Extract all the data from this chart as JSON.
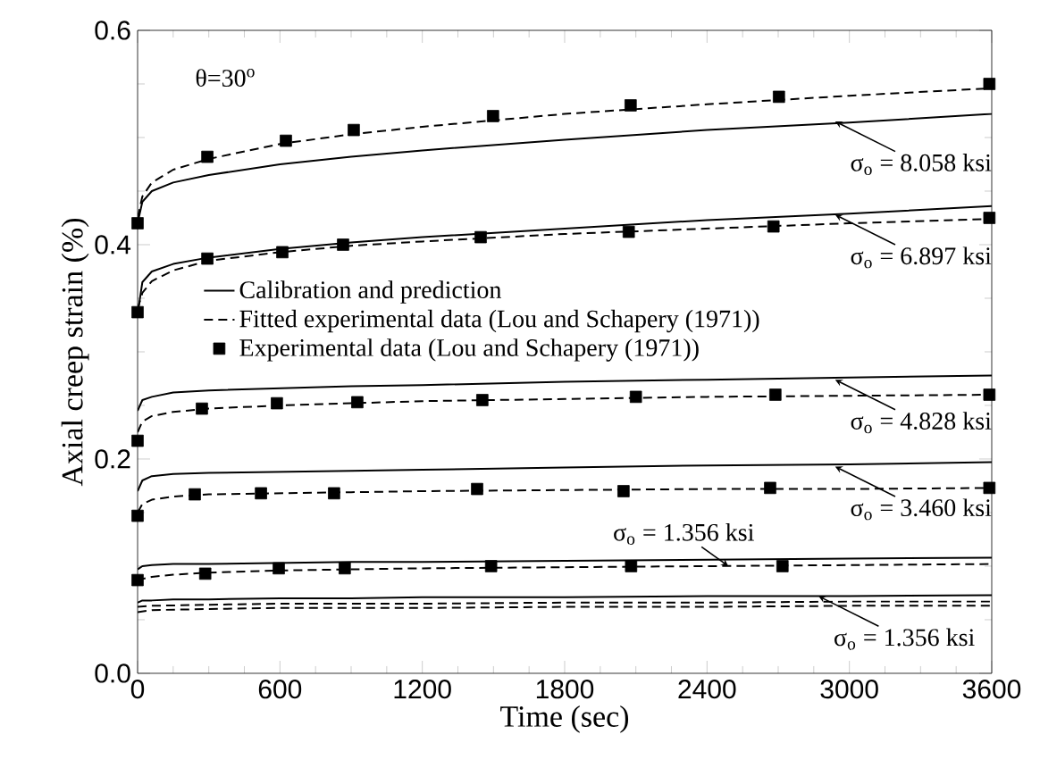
{
  "chart_data": {
    "type": "line",
    "xlabel": "Time (sec)",
    "ylabel": "Axial creep strain (%)",
    "xlim": [
      0,
      3600
    ],
    "xticks": [
      0,
      600,
      1200,
      1800,
      2400,
      3000,
      3600
    ],
    "ylim": [
      0,
      0.6
    ],
    "yticks": [
      {
        "value": 0,
        "label": "0.0"
      },
      {
        "value": 0.2,
        "label": "0.2"
      },
      {
        "value": 0.4,
        "label": "0.4"
      },
      {
        "value": 0.6,
        "label": "0.6"
      }
    ],
    "grid": false,
    "legend": "left",
    "series": [
      {
        "name": "Calibration and prediction",
        "type": "line",
        "line_style": "solid",
        "color": "#000000",
        "x": [
          0,
          20,
          60,
          150,
          300,
          600,
          900,
          1200,
          1800,
          2400,
          3000,
          3600
        ],
        "values": [
          0.42,
          0.44,
          0.45,
          0.458,
          0.465,
          0.475,
          0.482,
          0.488,
          0.498,
          0.507,
          0.514,
          0.522
        ]
      },
      {
        "name": "Fitted experimental data (Lou and Schapery (1971))",
        "type": "line",
        "line_style": "dashed",
        "color": "#000000",
        "x": [
          0,
          20,
          60,
          150,
          300,
          600,
          900,
          1200,
          1800,
          2400,
          3000,
          3600
        ],
        "values": [
          0.425,
          0.445,
          0.458,
          0.47,
          0.48,
          0.494,
          0.503,
          0.51,
          0.522,
          0.531,
          0.539,
          0.546
        ]
      },
      {
        "name": "Experimental data (Lou and Schapery (1971))",
        "type": "scatter",
        "marker": "square",
        "color": "#000000",
        "x": [
          0,
          294,
          625,
          911,
          1498,
          2078,
          2703,
          3590
        ],
        "values": [
          0.42,
          0.482,
          0.497,
          0.507,
          0.52,
          0.53,
          0.538,
          0.55
        ]
      },
      {
        "type": "line",
        "line_style": "solid",
        "color": "#000000",
        "x": [
          0,
          20,
          60,
          150,
          300,
          600,
          900,
          1200,
          1800,
          2400,
          3000,
          3600
        ],
        "values": [
          0.335,
          0.365,
          0.375,
          0.382,
          0.388,
          0.396,
          0.402,
          0.407,
          0.415,
          0.423,
          0.429,
          0.436
        ]
      },
      {
        "type": "line",
        "line_style": "dashed",
        "color": "#000000",
        "x": [
          0,
          20,
          60,
          150,
          300,
          600,
          900,
          1200,
          1800,
          2400,
          3000,
          3600
        ],
        "values": [
          0.34,
          0.355,
          0.366,
          0.376,
          0.385,
          0.393,
          0.399,
          0.403,
          0.41,
          0.415,
          0.42,
          0.424
        ]
      },
      {
        "type": "scatter",
        "marker": "square",
        "color": "#000000",
        "x": [
          0,
          294,
          610,
          866,
          1446,
          2070,
          2680,
          3590
        ],
        "values": [
          0.337,
          0.387,
          0.393,
          0.4,
          0.407,
          0.412,
          0.417,
          0.425
        ]
      },
      {
        "type": "line",
        "line_style": "solid",
        "color": "#000000",
        "x": [
          0,
          20,
          60,
          150,
          300,
          600,
          900,
          1200,
          1800,
          2400,
          3000,
          3600
        ],
        "values": [
          0.245,
          0.255,
          0.258,
          0.262,
          0.264,
          0.266,
          0.268,
          0.269,
          0.272,
          0.274,
          0.276,
          0.278
        ]
      },
      {
        "type": "line",
        "line_style": "dashed",
        "color": "#000000",
        "x": [
          0,
          20,
          60,
          150,
          300,
          600,
          900,
          1200,
          1800,
          2400,
          3000,
          3600
        ],
        "values": [
          0.225,
          0.235,
          0.24,
          0.244,
          0.247,
          0.25,
          0.252,
          0.254,
          0.256,
          0.258,
          0.259,
          0.26
        ]
      },
      {
        "type": "scatter",
        "marker": "square",
        "color": "#000000",
        "x": [
          0,
          271,
          587,
          926,
          1453,
          2100,
          2688,
          3590
        ],
        "values": [
          0.217,
          0.247,
          0.252,
          0.253,
          0.255,
          0.258,
          0.26,
          0.26
        ]
      },
      {
        "type": "line",
        "line_style": "solid",
        "color": "#000000",
        "x": [
          0,
          20,
          60,
          150,
          300,
          600,
          900,
          1200,
          1800,
          2400,
          3000,
          3600
        ],
        "values": [
          0.17,
          0.18,
          0.184,
          0.186,
          0.187,
          0.188,
          0.189,
          0.19,
          0.192,
          0.194,
          0.195,
          0.197
        ]
      },
      {
        "type": "line",
        "line_style": "dashed",
        "color": "#000000",
        "x": [
          0,
          20,
          60,
          150,
          300,
          600,
          900,
          1200,
          1800,
          2400,
          3000,
          3600
        ],
        "values": [
          0.15,
          0.158,
          0.162,
          0.165,
          0.167,
          0.168,
          0.169,
          0.17,
          0.171,
          0.172,
          0.172,
          0.173
        ]
      },
      {
        "type": "scatter",
        "marker": "square",
        "color": "#000000",
        "x": [
          0,
          241,
          520,
          828,
          1431,
          2048,
          2666,
          3590
        ],
        "values": [
          0.147,
          0.167,
          0.168,
          0.168,
          0.172,
          0.17,
          0.173,
          0.173
        ]
      },
      {
        "type": "line",
        "line_style": "solid",
        "color": "#000000",
        "x": [
          0,
          20,
          60,
          150,
          300,
          600,
          900,
          1200,
          1800,
          2400,
          3000,
          3600
        ],
        "values": [
          0.097,
          0.1,
          0.101,
          0.102,
          0.102,
          0.103,
          0.104,
          0.104,
          0.105,
          0.106,
          0.107,
          0.108
        ]
      },
      {
        "type": "line",
        "line_style": "dashed",
        "color": "#000000",
        "x": [
          0,
          20,
          60,
          150,
          300,
          600,
          900,
          1200,
          1800,
          2400,
          3000,
          3600
        ],
        "values": [
          0.085,
          0.088,
          0.09,
          0.092,
          0.094,
          0.096,
          0.097,
          0.098,
          0.099,
          0.1,
          0.101,
          0.102
        ]
      },
      {
        "type": "scatter",
        "marker": "square",
        "color": "#000000",
        "x": [
          0,
          285,
          595,
          873,
          1490,
          2080,
          2718
        ],
        "values": [
          0.087,
          0.093,
          0.098,
          0.098,
          0.1,
          0.1,
          0.1
        ]
      },
      {
        "type": "line",
        "line_style": "solid",
        "color": "#000000",
        "x": [
          0,
          20,
          60,
          150,
          300,
          600,
          900,
          1200,
          1800,
          2400,
          3000,
          3600
        ],
        "values": [
          0.066,
          0.068,
          0.068,
          0.069,
          0.069,
          0.07,
          0.07,
          0.071,
          0.071,
          0.072,
          0.072,
          0.073
        ]
      },
      {
        "type": "line",
        "line_style": "dashed",
        "color": "#000000",
        "x": [
          0,
          60,
          300,
          600,
          1200,
          1800,
          2400,
          3000,
          3600
        ],
        "values": [
          0.062,
          0.063,
          0.064,
          0.065,
          0.065,
          0.066,
          0.066,
          0.067,
          0.067
        ]
      },
      {
        "type": "line",
        "line_style": "dashed",
        "color": "#000000",
        "x": [
          0,
          60,
          300,
          600,
          1200,
          1800,
          2400,
          3000,
          3600
        ],
        "values": [
          0.057,
          0.059,
          0.06,
          0.061,
          0.061,
          0.062,
          0.062,
          0.063,
          0.063
        ]
      }
    ],
    "annotations": [
      "θ=30$^{o}$",
      {
        "text": "σ$_{o}$ = 8.058 ksi",
        "x": 2940,
        "y": 0.515
      },
      {
        "text": "σ$_{o}$ = 6.897 ksi",
        "x": 2940,
        "y": 0.428
      },
      {
        "text": "σ$_{o}$ = 4.828 ksi",
        "x": 2940,
        "y": 0.274
      },
      {
        "text": "σ$_{o}$ = 3.460 ksi",
        "x": 2940,
        "y": 0.193
      },
      {
        "text": "σ$_{o}$ = 1.356 ksi",
        "x": 2490,
        "y": 0.1
      },
      {
        "text": "σ$_{o}$ = 1.356 ksi",
        "x": 2870,
        "y": 0.072
      }
    ]
  }
}
